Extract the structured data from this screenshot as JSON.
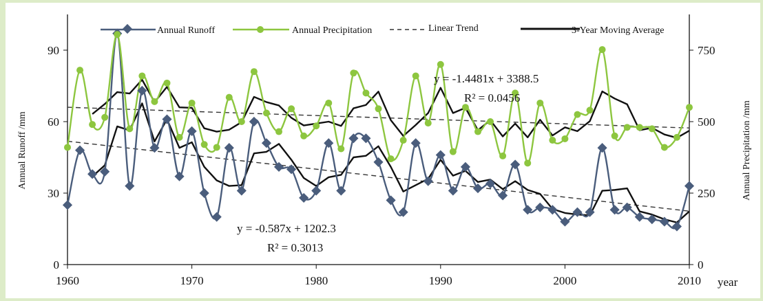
{
  "chart_data": {
    "type": "line",
    "x_label": "year",
    "y_left_label": "Annual Runoff /mm",
    "y_right_label": "Annual Precipitation /mm",
    "x_range": [
      1960,
      2010
    ],
    "y_left_range": [
      0,
      105
    ],
    "y_right_range": [
      0,
      875
    ],
    "x_ticks": [
      1960,
      1970,
      1980,
      1990,
      2000,
      2010
    ],
    "y_left_ticks": [
      0,
      30,
      60,
      90
    ],
    "y_right_ticks": [
      0,
      250,
      500,
      750
    ],
    "legend": {
      "placement": "top",
      "runoff": "Annual Runoff",
      "precip": "Annual Precipitation",
      "trend": "Linear Trend",
      "moving_average": "3-Year Moving Average"
    },
    "annotations": {
      "precip_equation": "y = -1.4481x + 3388.5",
      "precip_r2": "R² = 0.0456",
      "runoff_equation": "y = -0.587x + 1202.3",
      "runoff_r2": "R² = 0.3013"
    },
    "years": [
      1960,
      1961,
      1962,
      1963,
      1964,
      1965,
      1966,
      1967,
      1968,
      1969,
      1970,
      1971,
      1972,
      1973,
      1974,
      1975,
      1976,
      1977,
      1978,
      1979,
      1980,
      1981,
      1982,
      1983,
      1984,
      1985,
      1986,
      1987,
      1988,
      1989,
      1990,
      1991,
      1992,
      1993,
      1994,
      1995,
      1996,
      1997,
      1998,
      1999,
      2000,
      2001,
      2002,
      2003,
      2004,
      2005,
      2006,
      2007,
      2008,
      2009,
      2010
    ],
    "series": [
      {
        "name": "Annual Runoff",
        "axis": "left",
        "color": "#4a5d7c",
        "values": [
          25,
          48,
          38,
          39,
          97,
          33,
          73,
          49,
          61,
          37,
          56,
          30,
          20,
          49,
          31,
          60,
          51,
          41,
          40,
          28,
          31,
          51,
          31,
          53,
          53,
          43,
          27,
          22,
          51,
          35,
          46,
          31,
          41,
          32,
          34,
          29,
          42,
          23,
          24,
          23,
          18,
          22,
          22,
          49,
          23,
          24,
          20,
          19,
          18,
          16,
          33
        ]
      },
      {
        "name": "Annual Precipitation",
        "axis": "right",
        "color": "#8dc63f",
        "values": [
          410,
          680,
          490,
          515,
          805,
          475,
          660,
          570,
          635,
          445,
          565,
          420,
          410,
          585,
          500,
          675,
          530,
          465,
          545,
          450,
          485,
          565,
          405,
          670,
          600,
          545,
          370,
          435,
          660,
          495,
          700,
          395,
          550,
          465,
          500,
          380,
          600,
          355,
          565,
          435,
          440,
          525,
          540,
          752,
          450,
          480,
          480,
          475,
          410,
          445,
          550
        ]
      }
    ],
    "trend_lines": [
      {
        "name": "runoff-trend",
        "axis": "left",
        "slope": -0.587,
        "intercept": 1202.3
      },
      {
        "name": "precip-trend",
        "axis": "right",
        "slope": -1.4481,
        "intercept": 3388.5
      }
    ],
    "moving_averages": [
      {
        "name": "runoff-ma",
        "axis": "left",
        "from_year": 1962,
        "to_year": 2010
      },
      {
        "name": "precip-ma",
        "axis": "right",
        "from_year": 1962,
        "to_year": 2010
      }
    ]
  }
}
